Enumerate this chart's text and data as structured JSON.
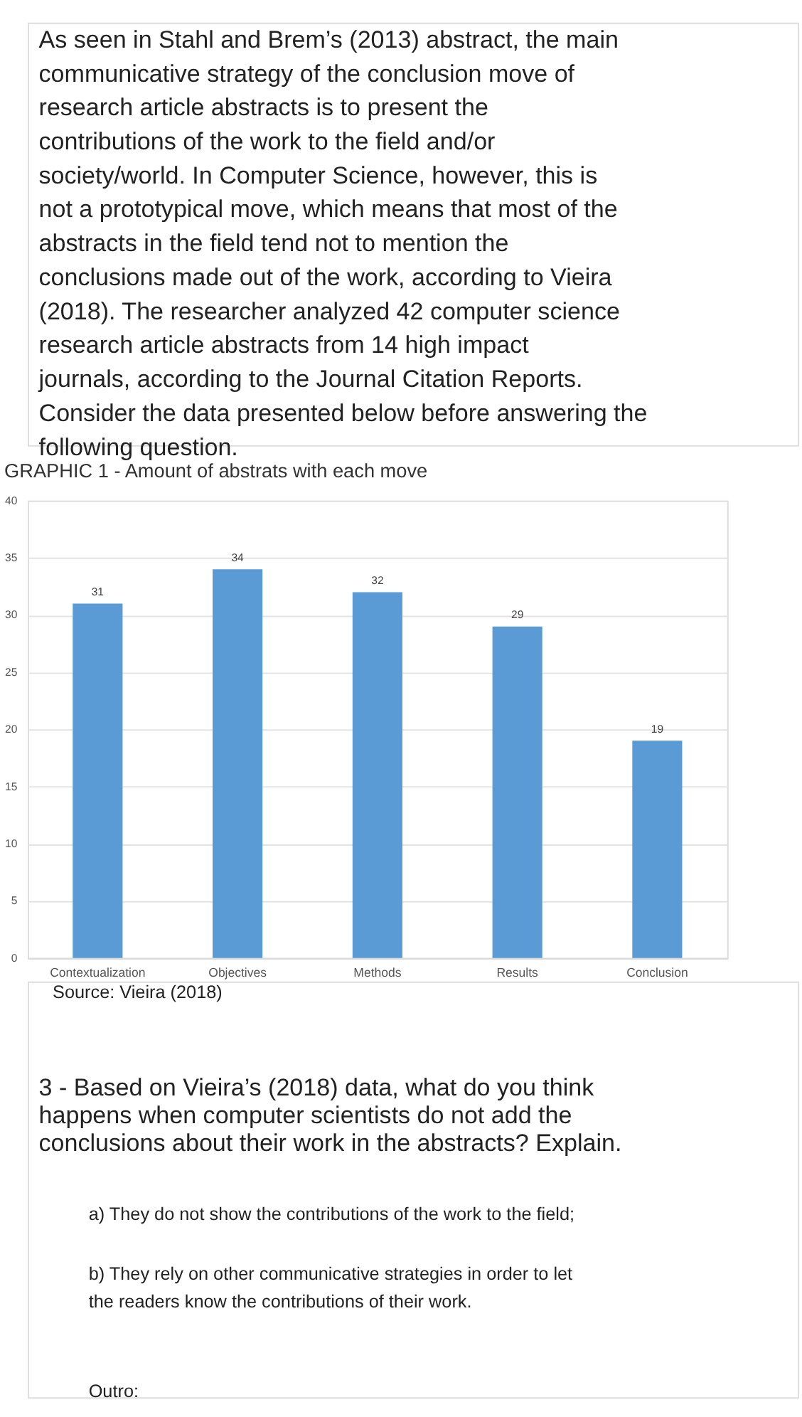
{
  "chart_data": {
    "type": "bar",
    "title": "GRAPHIC 1 - Amount of abstrats with each move",
    "categories": [
      "Contextualization",
      "Objectives",
      "Methods",
      "Results",
      "Conclusion"
    ],
    "values": [
      31,
      34,
      32,
      29,
      19
    ],
    "color": "#5b9bd5",
    "ylim": [
      0,
      40
    ],
    "yticks": [
      0,
      5,
      10,
      15,
      20,
      25,
      30,
      35,
      40
    ],
    "grid": "y",
    "data_labels": true,
    "annotations": [
      "As seen in Stahl and Brem’s (2013) abstract, the main communicative strategy of the conclusion move of research article abstracts is to present the contributions of the work to the field and/or society/world. In Computer Science, however, this is not a prototypical move, which means that most of the abstracts in the field tend not to mention the conclusions made out of the work, according to Vieira (2018). The researcher analyzed 42 computer science research article abstracts from 14 high impact journals, according to the Journal Citation Reports. Consider the data presented below before answering the following question.",
      "Source: Vieira (2018)",
      "3 - Based on Vieira’s (2018) data, what do you think happens when computer scientists do not add the conclusions about their work in the abstracts? Explain.",
      "a) They do not show the contributions of the work to the field;",
      "b) They rely on other communicative strategies in order to let the readers know the contributions of their work.",
      "Outro:"
    ]
  }
}
